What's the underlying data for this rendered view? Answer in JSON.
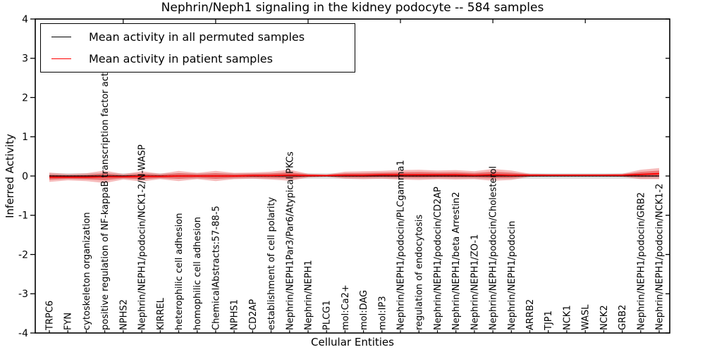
{
  "title": "Nephrin/Neph1 signaling in the kidney podocyte -- 584 samples",
  "legend": {
    "entries": [
      {
        "label": "Mean activity in all permuted samples",
        "color": "#000000"
      },
      {
        "label": "Mean activity in patient samples",
        "color": "#ff0000"
      }
    ]
  },
  "chart_data": {
    "type": "line",
    "title": "Nephrin/Neph1 signaling in the kidney podocyte -- 584 samples",
    "xlabel": "Cellular Entities",
    "ylabel": "Inferred Activity",
    "ylim": [
      -4,
      4
    ],
    "yticks": [
      4,
      3,
      2,
      1,
      0,
      -1,
      -2,
      -3,
      -4
    ],
    "grid": false,
    "legend_position": "upper left",
    "x_tick_label_rotation": 90,
    "categories": [
      "TRPC6",
      "FYN",
      "cytoskeleton organization",
      "positive regulation of NF-kappaB transcription factor activity",
      "NPHS2",
      "Nephrin/NEPH1/podocin/NCK1-2/N-WASP",
      "KIRREL",
      "heterophilic cell adhesion",
      "homophilic cell adhesion",
      "ChemicalAbstracts:57-88-5",
      "NPHS1",
      "CD2AP",
      "establishment of cell polarity",
      "Nephrin/NEPH1Par3/Par6/Atypical PKCs",
      "Nephrin/NEPH1",
      "PLCG1",
      "mol:Ca2+",
      "mol:DAG",
      "mol:IP3",
      "Nephrin/NEPH1/podocin/PLCgamma1",
      "regulation of endocytosis",
      "Nephrin/NEPH1/podocin/CD2AP",
      "Nephrin/NEPH1/beta Arrestin2",
      "Nephrin/NEPH1/ZO-1",
      "Nephrin/NEPH1/podocin/Cholesterol",
      "Nephrin/NEPH1/podocin",
      "ARRB2",
      "TJP1",
      "NCK1",
      "WASL",
      "NCK2",
      "GRB2",
      "Nephrin/NEPH1/podocin/GRB2",
      "Nephrin/NEPH1/podocin/NCK1-2"
    ],
    "series": [
      {
        "name": "Mean activity in all permuted samples",
        "color": "#000000",
        "style": "solid",
        "values": [
          0,
          0,
          0,
          0,
          0,
          0,
          0,
          0,
          0,
          0,
          0,
          0,
          0,
          0,
          0,
          0,
          0,
          0,
          0,
          0,
          0,
          0,
          0,
          0,
          0,
          0,
          0,
          0,
          0,
          0,
          0,
          0,
          0,
          0
        ]
      },
      {
        "name": "Mean activity in patient samples",
        "color": "#ff0000",
        "style": "solid",
        "values": [
          -0.03,
          -0.03,
          -0.03,
          -0.02,
          -0.02,
          -0.01,
          -0.01,
          0,
          0,
          0,
          0,
          0.01,
          0.01,
          0.02,
          0.01,
          0.01,
          0.02,
          0.02,
          0.03,
          0.03,
          0.03,
          0.03,
          0.03,
          0.02,
          0.03,
          0.02,
          0.02,
          0.02,
          0.02,
          0.02,
          0.02,
          0.02,
          0.04,
          0.06
        ]
      }
    ],
    "bands": [
      {
        "name": "permuted-std-band",
        "color": "#d9d9d9",
        "opacity": 0.85,
        "center_series": 0,
        "half_widths": [
          0.07,
          0.07,
          0.07,
          0.07,
          0.07,
          0.07,
          0.07,
          0.07,
          0.07,
          0.07,
          0.07,
          0.07,
          0.07,
          0.07,
          0.07,
          0.07,
          0.07,
          0.07,
          0.07,
          0.07,
          0.07,
          0.07,
          0.07,
          0.07,
          0.07,
          0.07,
          0.07,
          0.07,
          0.07,
          0.07,
          0.07,
          0.07,
          0.07,
          0.07
        ]
      },
      {
        "name": "patient-outer-band",
        "color": "#e63c3c",
        "opacity": 0.35,
        "center_series": 1,
        "half_widths": [
          0.12,
          0.08,
          0.1,
          0.16,
          0.07,
          0.13,
          0.07,
          0.13,
          0.08,
          0.13,
          0.08,
          0.08,
          0.1,
          0.14,
          0.05,
          0.03,
          0.09,
          0.1,
          0.1,
          0.12,
          0.13,
          0.11,
          0.12,
          0.1,
          0.15,
          0.12,
          0.04,
          0.03,
          0.03,
          0.03,
          0.03,
          0.04,
          0.12,
          0.14
        ]
      },
      {
        "name": "patient-inner-band",
        "color": "#e63c3c",
        "opacity": 0.55,
        "center_series": 1,
        "half_widths": [
          0.066,
          0.044,
          0.055,
          0.088,
          0.039,
          0.072,
          0.039,
          0.072,
          0.044,
          0.072,
          0.044,
          0.044,
          0.055,
          0.077,
          0.028,
          0.017,
          0.05,
          0.055,
          0.055,
          0.066,
          0.072,
          0.061,
          0.066,
          0.055,
          0.083,
          0.066,
          0.022,
          0.017,
          0.017,
          0.017,
          0.017,
          0.022,
          0.066,
          0.077
        ]
      }
    ],
    "zero_line": {
      "value": 0,
      "style": "dotted",
      "color": "#000000"
    }
  }
}
